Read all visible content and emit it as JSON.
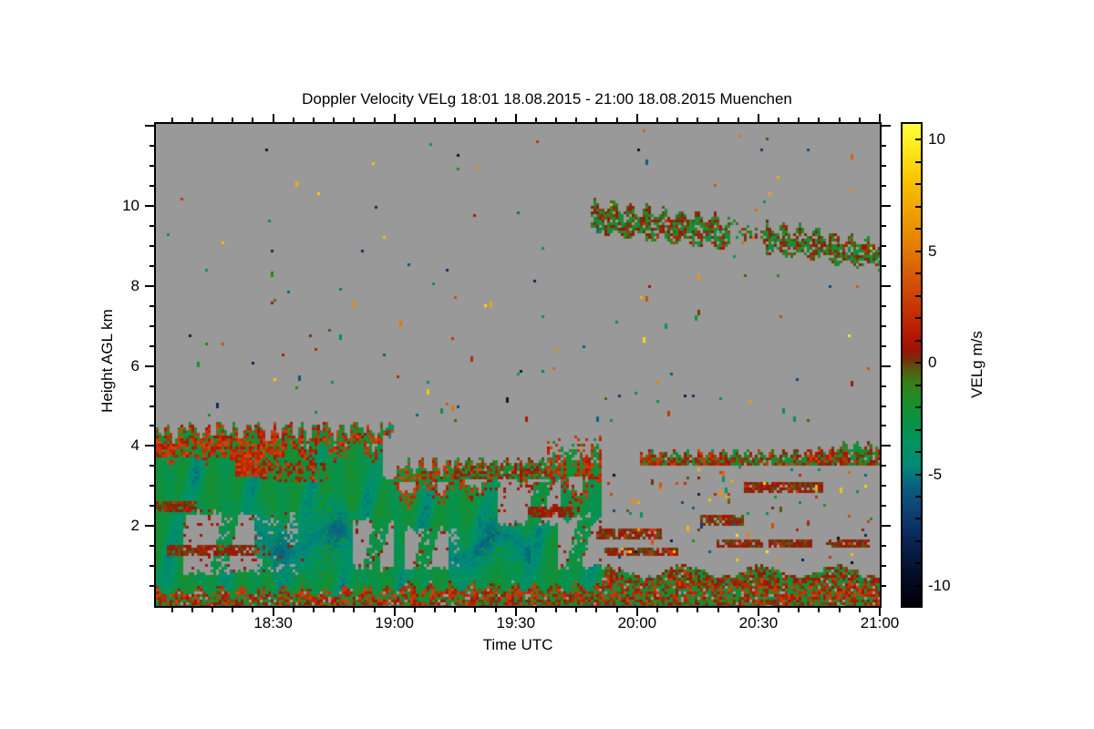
{
  "title": "Doppler Velocity VELg   18:01 18.08.2015 - 21:00 18.08.2015 Muenchen",
  "station": "Muenchen",
  "time_span": "18:01 18.08.2015 - 21:00 18.08.2015",
  "chart_data": {
    "type": "heatmap",
    "title": "Doppler Velocity VELg   18:01 18.08.2015 - 21:00 18.08.2015 Muenchen",
    "x": {
      "label": "Time UTC",
      "start_minutes": 1,
      "end_minutes": 180,
      "major_ticks": [
        {
          "label": "18:30",
          "m": 30
        },
        {
          "label": "19:00",
          "m": 60
        },
        {
          "label": "19:30",
          "m": 90
        },
        {
          "label": "20:00",
          "m": 120
        },
        {
          "label": "20:30",
          "m": 150
        },
        {
          "label": "21:00",
          "m": 180
        }
      ],
      "minor_step_minutes": 5
    },
    "y": {
      "label": "Height AGL km",
      "min_km": 0,
      "max_km": 12.05,
      "major_ticks": [
        {
          "label": "2",
          "km": 2
        },
        {
          "label": "4",
          "km": 4
        },
        {
          "label": "6",
          "km": 6
        },
        {
          "label": "8",
          "km": 8
        },
        {
          "label": "10",
          "km": 10
        }
      ],
      "minor_step_km": 0.5,
      "major_step_km": 2
    },
    "colorbar": {
      "label": "VELg m/s",
      "vmin": -10.9,
      "vmax": 10.7,
      "ticks": [
        {
          "label": "10",
          "v": 10
        },
        {
          "label": "5",
          "v": 5
        },
        {
          "label": "0",
          "v": 0
        },
        {
          "label": "-5",
          "v": -5
        },
        {
          "label": "-10",
          "v": -10
        }
      ],
      "minor_step": 1,
      "stops": [
        [
          10.7,
          "#ffff40"
        ],
        [
          9.6,
          "#ffe81c"
        ],
        [
          8.2,
          "#f9c400"
        ],
        [
          6.8,
          "#efa201"
        ],
        [
          5.2,
          "#e37d02"
        ],
        [
          3.8,
          "#d65608"
        ],
        [
          2.4,
          "#c63306"
        ],
        [
          1.2,
          "#b21703"
        ],
        [
          0.55,
          "#991409"
        ],
        [
          0.15,
          "#7a2d0b"
        ],
        [
          -0.2,
          "#5d5110"
        ],
        [
          -0.8,
          "#3c7a15"
        ],
        [
          -1.6,
          "#1e8d26"
        ],
        [
          -2.6,
          "#0a9143"
        ],
        [
          -3.6,
          "#01945e"
        ],
        [
          -4.6,
          "#008a76"
        ],
        [
          -5.6,
          "#0b5d80"
        ],
        [
          -6.6,
          "#0d4375"
        ],
        [
          -7.6,
          "#0b2c5e"
        ],
        [
          -8.6,
          "#071a42"
        ],
        [
          -9.6,
          "#030b24"
        ],
        [
          -10.9,
          "#000006"
        ]
      ]
    },
    "no_data_color": "#999999",
    "features": [
      {
        "type": "bl_band",
        "t0": 1,
        "t1": 180,
        "h0": 0,
        "h1": 0.92
      },
      {
        "type": "green_core",
        "t0": 1,
        "t1": 60,
        "h0": 0.32,
        "h1": 4.52,
        "base": -2.5
      },
      {
        "type": "hole",
        "t0": 8,
        "t1": 36,
        "h0": 0.85,
        "h1": 2.28
      },
      {
        "type": "curtains",
        "t0": 8,
        "t1": 38,
        "h0": 0.85,
        "h1": 2.35
      },
      {
        "type": "olive_line",
        "t0": 4,
        "t1": 40,
        "h": 1.36,
        "th": 0.1
      },
      {
        "type": "olive_line",
        "t0": 1,
        "t1": 11,
        "h": 2.47,
        "th": 0.12
      },
      {
        "type": "teal_wash",
        "t0": 26,
        "t1": 53,
        "h0": 0.55,
        "h1": 2.7
      },
      {
        "type": "hole",
        "t0": 50,
        "t1": 64,
        "h0": 0.95,
        "h1": 2.1
      },
      {
        "type": "curtains",
        "t0": 50,
        "t1": 64,
        "h0": 0.95,
        "h1": 2.15
      },
      {
        "type": "red_cap",
        "t0": 1,
        "t1": 33,
        "h0": 3.72,
        "h1": 4.52,
        "mix": 0.35
      },
      {
        "type": "red_cap",
        "t0": 33,
        "t1": 58,
        "h0": 4.1,
        "h1": 4.55,
        "mix": 0.5
      },
      {
        "type": "red_patch",
        "t0": 21,
        "t1": 28,
        "h0": 3.3,
        "h1": 3.8
      },
      {
        "type": "speck_band",
        "t0": 27,
        "t1": 43,
        "h0": 3.15,
        "h1": 3.6,
        "w": [
          3,
          3,
          4
        ]
      },
      {
        "type": "green_core",
        "t0": 60,
        "t1": 111,
        "h0": 0.42,
        "h1": 3.42,
        "base": -2.6
      },
      {
        "type": "hole",
        "t0": 57.5,
        "t1": 61.5,
        "h0": 3.25,
        "h1": 4.3
      },
      {
        "type": "hole",
        "t0": 63,
        "t1": 76,
        "h0": 0.95,
        "h1": 1.88
      },
      {
        "type": "curtains",
        "t0": 63,
        "t1": 77,
        "h0": 0.95,
        "h1": 1.9
      },
      {
        "type": "teal_wash",
        "t0": 74,
        "t1": 93,
        "h0": 0.6,
        "h1": 2.35
      },
      {
        "type": "hole",
        "t0": 86,
        "t1": 101,
        "h0": 2.05,
        "h1": 3.05
      },
      {
        "type": "curtains",
        "t0": 86,
        "t1": 101,
        "h0": 2.05,
        "h1": 3.05
      },
      {
        "type": "hole",
        "t0": 101,
        "t1": 111,
        "h0": 1.0,
        "h1": 2.2
      },
      {
        "type": "curtains",
        "t0": 101,
        "t1": 112,
        "h0": 1.0,
        "h1": 2.2
      },
      {
        "type": "red_cap",
        "t0": 61,
        "t1": 75,
        "h0": 3.12,
        "h1": 3.68,
        "mix": 0.5
      },
      {
        "type": "speck_band",
        "t0": 75,
        "t1": 99,
        "h0": 3.2,
        "h1": 3.62,
        "w": [
          4,
          2,
          4
        ]
      },
      {
        "type": "mixed_spikes",
        "t0": 98,
        "t1": 111,
        "h0": 3.3,
        "h1": 4.28
      },
      {
        "type": "speck_band",
        "t0": 121,
        "t1": 180,
        "h0": 3.52,
        "h1": 3.82,
        "w": [
          4,
          2,
          5
        ]
      },
      {
        "type": "speck_band",
        "t0": 121,
        "t1": 126,
        "h0": 3.55,
        "h1": 3.8,
        "w": [
          1,
          6,
          1
        ]
      },
      {
        "type": "speck_band",
        "t0": 135,
        "t1": 141,
        "h0": 3.55,
        "h1": 3.8,
        "w": [
          1,
          5,
          2
        ]
      },
      {
        "type": "speck_band",
        "t0": 163,
        "t1": 172,
        "h0": 3.6,
        "h1": 3.88,
        "w": [
          2,
          5,
          2
        ]
      },
      {
        "type": "speck_band",
        "t0": 170,
        "t1": 179.5,
        "h0": 3.72,
        "h1": 4.02,
        "w": [
          3,
          1,
          6
        ]
      },
      {
        "type": "olive_line",
        "t0": 147,
        "t1": 166,
        "h": 2.99,
        "th": 0.1
      },
      {
        "type": "olive_line",
        "t0": 93,
        "t1": 104,
        "h": 2.33,
        "th": 0.1
      },
      {
        "type": "olive_line",
        "t0": 136,
        "t1": 146,
        "h": 2.15,
        "th": 0.09
      },
      {
        "type": "olive_line",
        "t0": 140,
        "t1": 151,
        "h": 1.56,
        "th": 0.09
      },
      {
        "type": "olive_line",
        "t0": 153,
        "t1": 163,
        "h": 1.57,
        "th": 0.09
      },
      {
        "type": "olive_line",
        "t0": 167,
        "t1": 177,
        "h": 1.58,
        "th": 0.08
      },
      {
        "type": "olive_line",
        "t0": 110,
        "t1": 126,
        "h": 1.8,
        "th": 0.08
      },
      {
        "type": "olive_line",
        "t0": 112,
        "t1": 130,
        "h": 1.36,
        "th": 0.08
      },
      {
        "type": "cloud",
        "t0": 109,
        "t1": 143,
        "top0": 10.05,
        "top1": 9.6,
        "bot0": 9.35,
        "bot1": 8.95,
        "cov": 0.82
      },
      {
        "type": "cloud",
        "t0": 143,
        "t1": 152,
        "top0": 9.6,
        "top1": 9.45,
        "bot0": 9.2,
        "bot1": 9.0,
        "cov": 0.3
      },
      {
        "type": "cloud",
        "t0": 152,
        "t1": 180,
        "top0": 9.5,
        "top1": 9.05,
        "bot0": 8.85,
        "bot1": 8.45,
        "cov": 0.78
      },
      {
        "type": "speckles",
        "t0": 2,
        "t1": 179,
        "h0": 4.8,
        "h1": 11.9,
        "count": 110
      },
      {
        "type": "speckles",
        "t0": 112,
        "t1": 179,
        "h0": 0.95,
        "h1": 3.5,
        "count": 85
      },
      {
        "type": "speckles",
        "t0": 2,
        "t1": 179,
        "h0": 4.55,
        "h1": 5.4,
        "count": 18
      }
    ]
  }
}
